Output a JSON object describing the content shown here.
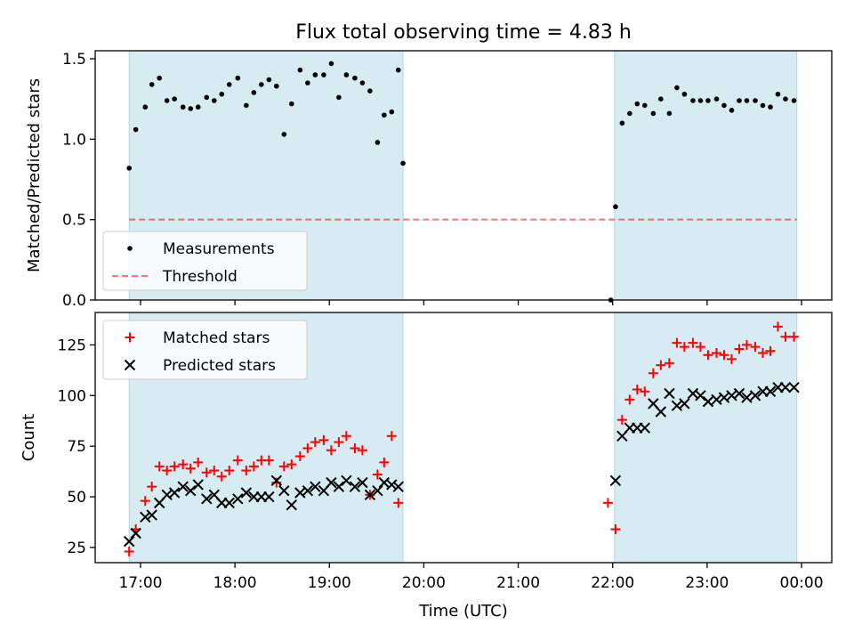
{
  "title": "Flux total observing time = 4.83 h",
  "xlabel": "Time (UTC)",
  "x_ticks": [
    {
      "t": 17,
      "label": "17:00"
    },
    {
      "t": 18,
      "label": "18:00"
    },
    {
      "t": 19,
      "label": "19:00"
    },
    {
      "t": 20,
      "label": "20:00"
    },
    {
      "t": 21,
      "label": "21:00"
    },
    {
      "t": 22,
      "label": "22:00"
    },
    {
      "t": 23,
      "label": "23:00"
    },
    {
      "t": 24,
      "label": "00:00"
    }
  ],
  "colors": {
    "band": "#add8e6",
    "measurement": "#000000",
    "threshold": "#ff0000",
    "matched": "#ff0000",
    "predicted": "#000000"
  },
  "chart_data": [
    {
      "type": "scatter",
      "id": "ratio",
      "ylabel": "Matched/Predicted stars",
      "xlim": [
        16.52,
        24.32
      ],
      "ylim": [
        0,
        1.55
      ],
      "y_ticks": [
        0.0,
        0.5,
        1.0,
        1.5
      ],
      "y_tick_labels": [
        "0.0",
        "0.5",
        "1.0",
        "1.5"
      ],
      "shaded_intervals": [
        [
          16.88,
          19.78
        ],
        [
          22.02,
          23.95
        ]
      ],
      "threshold": {
        "name": "Threshold",
        "value": 0.5,
        "x_range": [
          16.88,
          23.95
        ]
      },
      "legend": {
        "position": "lower-left",
        "entries": [
          "Measurements",
          "Threshold"
        ]
      },
      "series": [
        {
          "name": "Measurements",
          "marker": "dot",
          "points": [
            [
              16.88,
              0.82
            ],
            [
              16.95,
              1.06
            ],
            [
              17.05,
              1.2
            ],
            [
              17.12,
              1.34
            ],
            [
              17.2,
              1.38
            ],
            [
              17.28,
              1.24
            ],
            [
              17.36,
              1.25
            ],
            [
              17.45,
              1.2
            ],
            [
              17.53,
              1.19
            ],
            [
              17.61,
              1.2
            ],
            [
              17.7,
              1.26
            ],
            [
              17.78,
              1.24
            ],
            [
              17.86,
              1.28
            ],
            [
              17.94,
              1.34
            ],
            [
              18.03,
              1.38
            ],
            [
              18.12,
              1.21
            ],
            [
              18.2,
              1.29
            ],
            [
              18.28,
              1.34
            ],
            [
              18.36,
              1.37
            ],
            [
              18.44,
              1.33
            ],
            [
              18.52,
              1.03
            ],
            [
              18.6,
              1.22
            ],
            [
              18.69,
              1.43
            ],
            [
              18.77,
              1.35
            ],
            [
              18.85,
              1.4
            ],
            [
              18.94,
              1.4
            ],
            [
              19.02,
              1.47
            ],
            [
              19.1,
              1.26
            ],
            [
              19.18,
              1.4
            ],
            [
              19.27,
              1.38
            ],
            [
              19.35,
              1.35
            ],
            [
              19.43,
              1.3
            ],
            [
              19.51,
              0.98
            ],
            [
              19.58,
              1.15
            ],
            [
              19.66,
              1.17
            ],
            [
              19.73,
              1.43
            ],
            [
              19.78,
              0.85
            ],
            [
              21.98,
              0.0
            ],
            [
              22.03,
              0.58
            ],
            [
              22.1,
              1.1
            ],
            [
              22.18,
              1.16
            ],
            [
              22.26,
              1.22
            ],
            [
              22.34,
              1.21
            ],
            [
              22.43,
              1.16
            ],
            [
              22.51,
              1.25
            ],
            [
              22.6,
              1.16
            ],
            [
              22.68,
              1.32
            ],
            [
              22.76,
              1.28
            ],
            [
              22.85,
              1.24
            ],
            [
              22.93,
              1.24
            ],
            [
              23.01,
              1.24
            ],
            [
              23.1,
              1.25
            ],
            [
              23.18,
              1.21
            ],
            [
              23.26,
              1.18
            ],
            [
              23.34,
              1.24
            ],
            [
              23.42,
              1.24
            ],
            [
              23.51,
              1.24
            ],
            [
              23.59,
              1.21
            ],
            [
              23.67,
              1.2
            ],
            [
              23.75,
              1.28
            ],
            [
              23.83,
              1.25
            ],
            [
              23.92,
              1.24
            ]
          ]
        }
      ]
    },
    {
      "type": "scatter",
      "id": "count",
      "ylabel": "Count",
      "xlim": [
        16.52,
        24.32
      ],
      "ylim": [
        17.5,
        141
      ],
      "y_ticks": [
        25,
        50,
        75,
        100,
        125
      ],
      "y_tick_labels": [
        "25",
        "50",
        "75",
        "100",
        "125"
      ],
      "shaded_intervals": [
        [
          16.88,
          19.78
        ],
        [
          22.02,
          23.95
        ]
      ],
      "legend": {
        "position": "upper-left",
        "entries": [
          "Matched stars",
          "Predicted stars"
        ]
      },
      "series": [
        {
          "name": "Matched stars",
          "marker": "plus",
          "points": [
            [
              16.88,
              23
            ],
            [
              16.95,
              34
            ],
            [
              17.05,
              48
            ],
            [
              17.12,
              55
            ],
            [
              17.2,
              65
            ],
            [
              17.28,
              63
            ],
            [
              17.36,
              65
            ],
            [
              17.45,
              66
            ],
            [
              17.53,
              64
            ],
            [
              17.61,
              67
            ],
            [
              17.7,
              62
            ],
            [
              17.78,
              63
            ],
            [
              17.86,
              60
            ],
            [
              17.94,
              63
            ],
            [
              18.03,
              68
            ],
            [
              18.12,
              63
            ],
            [
              18.2,
              65
            ],
            [
              18.28,
              68
            ],
            [
              18.36,
              68
            ],
            [
              18.44,
              57
            ],
            [
              18.52,
              65
            ],
            [
              18.6,
              66
            ],
            [
              18.69,
              70
            ],
            [
              18.77,
              74
            ],
            [
              18.85,
              77
            ],
            [
              18.94,
              78
            ],
            [
              19.02,
              73
            ],
            [
              19.1,
              77
            ],
            [
              19.18,
              80
            ],
            [
              19.27,
              74
            ],
            [
              19.35,
              73
            ],
            [
              19.43,
              51
            ],
            [
              19.51,
              61
            ],
            [
              19.58,
              67
            ],
            [
              19.66,
              80
            ],
            [
              19.73,
              47
            ],
            [
              21.95,
              47
            ],
            [
              22.03,
              34
            ],
            [
              22.1,
              88
            ],
            [
              22.18,
              98
            ],
            [
              22.26,
              103
            ],
            [
              22.34,
              102
            ],
            [
              22.43,
              111
            ],
            [
              22.51,
              115
            ],
            [
              22.6,
              116
            ],
            [
              22.68,
              126
            ],
            [
              22.76,
              124
            ],
            [
              22.85,
              126
            ],
            [
              22.93,
              124
            ],
            [
              23.01,
              120
            ],
            [
              23.1,
              121
            ],
            [
              23.18,
              120
            ],
            [
              23.26,
              118
            ],
            [
              23.34,
              123
            ],
            [
              23.42,
              125
            ],
            [
              23.51,
              124
            ],
            [
              23.59,
              121
            ],
            [
              23.67,
              122
            ],
            [
              23.75,
              134
            ],
            [
              23.83,
              129
            ],
            [
              23.92,
              129
            ]
          ]
        },
        {
          "name": "Predicted stars",
          "marker": "x",
          "points": [
            [
              16.88,
              28
            ],
            [
              16.95,
              32
            ],
            [
              17.05,
              40
            ],
            [
              17.12,
              41
            ],
            [
              17.2,
              47
            ],
            [
              17.28,
              51
            ],
            [
              17.36,
              52
            ],
            [
              17.45,
              55
            ],
            [
              17.53,
              53
            ],
            [
              17.61,
              56
            ],
            [
              17.7,
              49
            ],
            [
              17.78,
              51
            ],
            [
              17.86,
              47
            ],
            [
              17.94,
              47
            ],
            [
              18.03,
              49
            ],
            [
              18.12,
              52
            ],
            [
              18.2,
              50
            ],
            [
              18.28,
              50
            ],
            [
              18.36,
              50
            ],
            [
              18.44,
              58
            ],
            [
              18.52,
              53
            ],
            [
              18.6,
              46
            ],
            [
              18.69,
              52
            ],
            [
              18.77,
              53
            ],
            [
              18.85,
              55
            ],
            [
              18.94,
              53
            ],
            [
              19.02,
              57
            ],
            [
              19.1,
              55
            ],
            [
              19.18,
              58
            ],
            [
              19.27,
              55
            ],
            [
              19.35,
              57
            ],
            [
              19.43,
              51
            ],
            [
              19.51,
              53
            ],
            [
              19.58,
              57
            ],
            [
              19.66,
              56
            ],
            [
              19.73,
              55
            ],
            [
              22.03,
              58
            ],
            [
              22.1,
              80
            ],
            [
              22.18,
              84
            ],
            [
              22.26,
              84
            ],
            [
              22.34,
              84
            ],
            [
              22.43,
              96
            ],
            [
              22.51,
              92
            ],
            [
              22.6,
              101
            ],
            [
              22.68,
              95
            ],
            [
              22.76,
              96
            ],
            [
              22.85,
              101
            ],
            [
              22.93,
              100
            ],
            [
              23.01,
              97
            ],
            [
              23.1,
              98
            ],
            [
              23.18,
              99
            ],
            [
              23.26,
              100
            ],
            [
              23.34,
              101
            ],
            [
              23.42,
              99
            ],
            [
              23.51,
              100
            ],
            [
              23.59,
              102
            ],
            [
              23.67,
              102
            ],
            [
              23.75,
              104
            ],
            [
              23.83,
              104
            ],
            [
              23.92,
              104
            ]
          ]
        }
      ]
    }
  ]
}
